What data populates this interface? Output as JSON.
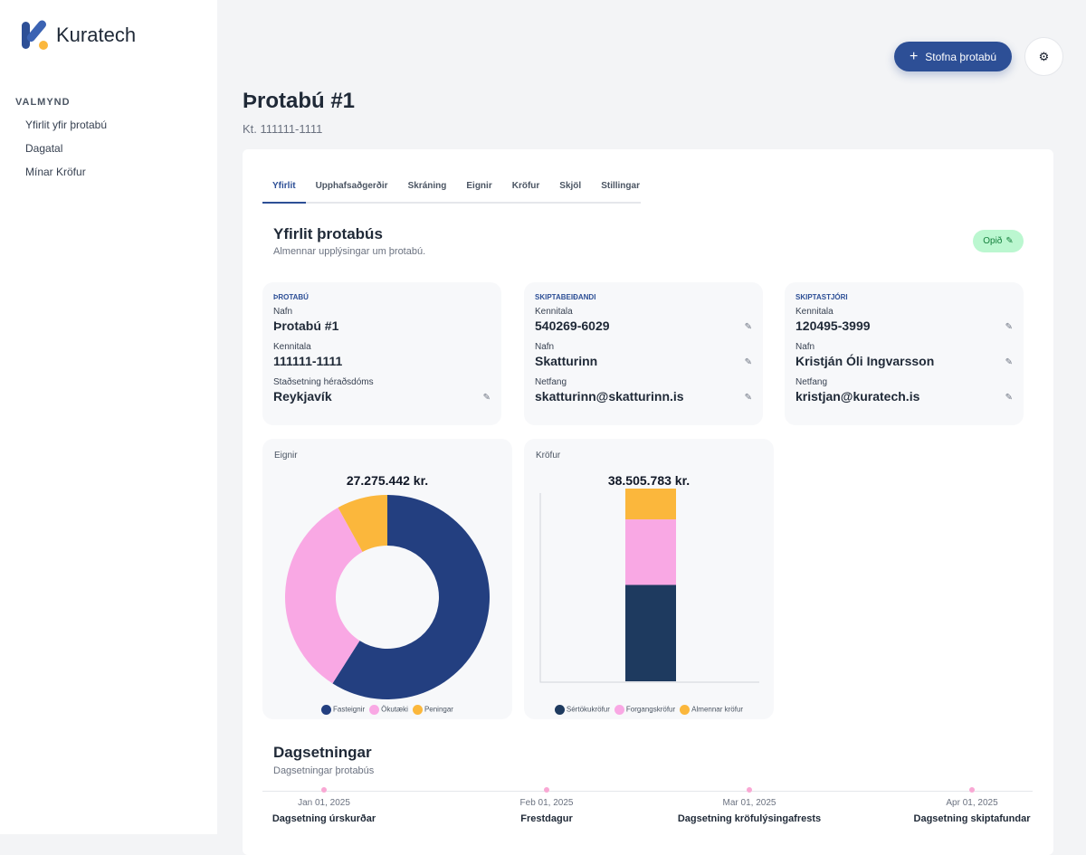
{
  "brand": {
    "name": "Kuratech"
  },
  "sidebar": {
    "title": "VALMYND",
    "items": [
      {
        "label": "Yfirlit yfir þrotabú"
      },
      {
        "label": "Dagatal"
      },
      {
        "label": "Mínar Kröfur"
      }
    ]
  },
  "header": {
    "new_button": "Stofna þrotabú",
    "title": "Þrotabú #1",
    "kt": "Kt. 111111-1111"
  },
  "tabs": [
    {
      "label": "Yfirlit"
    },
    {
      "label": "Upphafsaðgerðir"
    },
    {
      "label": "Skráning"
    },
    {
      "label": "Eignir"
    },
    {
      "label": "Kröfur"
    },
    {
      "label": "Skjöl"
    },
    {
      "label": "Stillingar"
    }
  ],
  "overview": {
    "title": "Yfirlit þrotabús",
    "subtitle": "Almennar upplýsingar um þrotabú.",
    "status": "Opið"
  },
  "cards": [
    {
      "heading": "ÞROTABÚ",
      "fields": [
        {
          "label": "Nafn",
          "value": "Þrotabú #1"
        },
        {
          "label": "Kennitala",
          "value": "111111-1111"
        },
        {
          "label": "Staðsetning héraðsdóms",
          "value": "Reykjavík"
        }
      ]
    },
    {
      "heading": "SKIPTABEIÐANDI",
      "fields": [
        {
          "label": "Kennitala",
          "value": "540269-6029"
        },
        {
          "label": "Nafn",
          "value": "Skatturinn"
        },
        {
          "label": "Netfang",
          "value": "skatturinn@skatturinn.is"
        }
      ]
    },
    {
      "heading": "SKIPTASTJÓRI",
      "fields": [
        {
          "label": "Kennitala",
          "value": "120495-3999"
        },
        {
          "label": "Nafn",
          "value": "Kristján Óli Ingvarsson"
        },
        {
          "label": "Netfang",
          "value": "kristjan@kuratech.is"
        }
      ]
    }
  ],
  "chart_data": [
    {
      "type": "pie",
      "title": "Eignir",
      "total": "27.275.442 kr.",
      "categories": [
        "Fasteignir",
        "Ökutæki",
        "Peningar"
      ],
      "values": [
        59,
        33,
        8
      ],
      "colors": [
        "#233f80",
        "#f9a8e4",
        "#fbb73c"
      ]
    },
    {
      "type": "bar",
      "title": "Kröfur",
      "total": "38.505.783 kr.",
      "categories": [
        "Sértökukröfur",
        "Forgangskröfur",
        "Almennar kröfur"
      ],
      "values": [
        50,
        34,
        16
      ],
      "colors": [
        "#1e3a5f",
        "#f9a8e4",
        "#fbb73c"
      ]
    }
  ],
  "dates": {
    "title": "Dagsetningar",
    "subtitle": "Dagsetningar þrotabús",
    "items": [
      {
        "date": "Jan 01, 2025",
        "label": "Dagsetning úrskurðar"
      },
      {
        "date": "Feb 01, 2025",
        "label": "Frestdagur"
      },
      {
        "date": "Mar 01, 2025",
        "label": "Dagsetning kröfulýsingafrests"
      },
      {
        "date": "Apr 01, 2025",
        "label": "Dagsetning skiptafundar"
      }
    ]
  }
}
